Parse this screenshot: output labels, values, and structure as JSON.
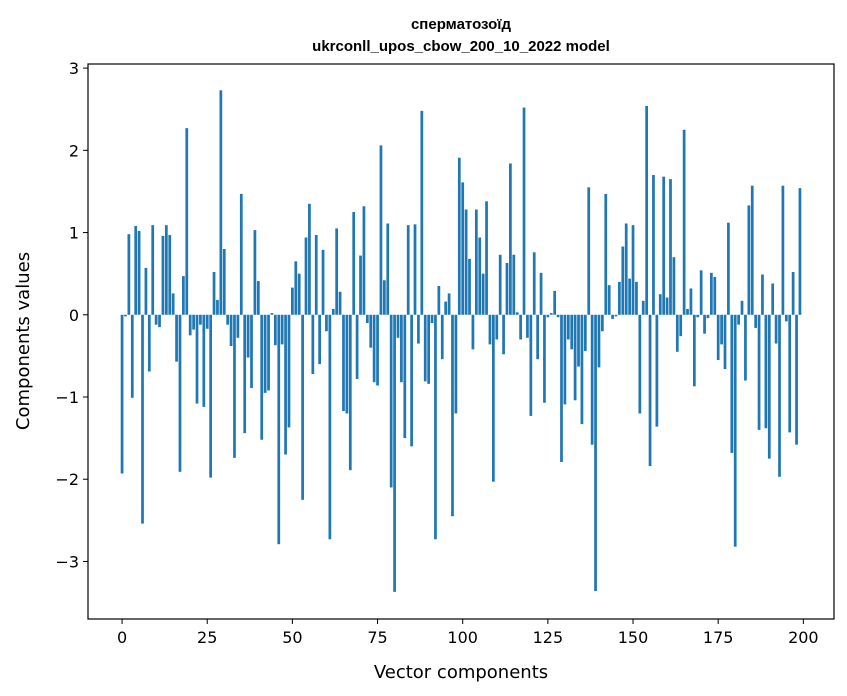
{
  "chart_data": {
    "type": "bar",
    "title": "сперматозоїд",
    "subtitle": "ukrconll_upos_cbow_200_10_2022 model",
    "xlabel": "Vector components",
    "ylabel": "Components values",
    "xlim": [
      -10,
      209
    ],
    "ylim": [
      -3.7,
      3.05
    ],
    "xticks": [
      0,
      25,
      50,
      75,
      100,
      125,
      150,
      175,
      200
    ],
    "xtick_labels": [
      "0",
      "25",
      "50",
      "75",
      "100",
      "125",
      "150",
      "175",
      "200"
    ],
    "yticks": [
      3,
      2,
      1,
      0,
      -1,
      -2,
      -3
    ],
    "ytick_labels": [
      "3",
      "2",
      "1",
      "0",
      "−1",
      "−2",
      "−3"
    ],
    "bar_color": "#1f77b4",
    "grid": false,
    "x": [
      0,
      1,
      2,
      3,
      4,
      5,
      6,
      7,
      8,
      9,
      10,
      11,
      12,
      13,
      14,
      15,
      16,
      17,
      18,
      19,
      20,
      21,
      22,
      23,
      24,
      25,
      26,
      27,
      28,
      29,
      30,
      31,
      32,
      33,
      34,
      35,
      36,
      37,
      38,
      39,
      40,
      41,
      42,
      43,
      44,
      45,
      46,
      47,
      48,
      49,
      50,
      51,
      52,
      53,
      54,
      55,
      56,
      57,
      58,
      59,
      60,
      61,
      62,
      63,
      64,
      65,
      66,
      67,
      68,
      69,
      70,
      71,
      72,
      73,
      74,
      75,
      76,
      77,
      78,
      79,
      80,
      81,
      82,
      83,
      84,
      85,
      86,
      87,
      88,
      89,
      90,
      91,
      92,
      93,
      94,
      95,
      96,
      97,
      98,
      99,
      100,
      101,
      102,
      103,
      104,
      105,
      106,
      107,
      108,
      109,
      110,
      111,
      112,
      113,
      114,
      115,
      116,
      117,
      118,
      119,
      120,
      121,
      122,
      123,
      124,
      125,
      126,
      127,
      128,
      129,
      130,
      131,
      132,
      133,
      134,
      135,
      136,
      137,
      138,
      139,
      140,
      141,
      142,
      143,
      144,
      145,
      146,
      147,
      148,
      149,
      150,
      151,
      152,
      153,
      154,
      155,
      156,
      157,
      158,
      159,
      160,
      161,
      162,
      163,
      164,
      165,
      166,
      167,
      168,
      169,
      170,
      171,
      172,
      173,
      174,
      175,
      176,
      177,
      178,
      179,
      180,
      181,
      182,
      183,
      184,
      185,
      186,
      187,
      188,
      189,
      190,
      191,
      192,
      193,
      194,
      195,
      196,
      197,
      198,
      199
    ],
    "values": [
      -1.93,
      -0.02,
      0.98,
      -1.01,
      1.08,
      1.02,
      -2.54,
      0.57,
      -0.69,
      1.09,
      -0.12,
      -0.15,
      0.96,
      1.09,
      0.97,
      0.26,
      -0.57,
      -1.91,
      0.47,
      2.27,
      -0.25,
      -0.18,
      -1.08,
      -0.12,
      -1.12,
      -0.17,
      -1.98,
      0.52,
      0.18,
      2.73,
      0.8,
      -0.12,
      -0.38,
      -1.74,
      -0.28,
      1.47,
      -1.44,
      -0.52,
      -0.89,
      1.03,
      0.41,
      -1.52,
      -0.95,
      -0.92,
      0.02,
      -0.37,
      -2.79,
      -0.36,
      -1.7,
      -1.37,
      0.33,
      0.65,
      0.5,
      -2.25,
      0.94,
      1.35,
      -0.72,
      0.97,
      -0.6,
      0.79,
      -0.2,
      -2.73,
      0.07,
      1.05,
      0.28,
      -1.17,
      -1.2,
      -1.89,
      1.25,
      -0.78,
      0.72,
      1.32,
      -0.1,
      -0.4,
      -0.82,
      -0.86,
      2.06,
      0.42,
      1.11,
      -2.1,
      -3.37,
      -0.28,
      -0.82,
      -1.5,
      1.09,
      -1.6,
      1.1,
      -0.35,
      2.48,
      -0.81,
      -0.84,
      -0.1,
      -2.73,
      0.35,
      -0.54,
      0.16,
      0.26,
      -2.45,
      -1.2,
      1.91,
      1.61,
      1.28,
      0.68,
      -0.42,
      1.28,
      0.94,
      0.5,
      1.38,
      -0.36,
      -2.03,
      -0.3,
      0.73,
      -0.48,
      0.63,
      1.84,
      0.73,
      0.03,
      -0.3,
      2.52,
      -0.28,
      -1.23,
      0.76,
      -0.54,
      0.51,
      -1.07,
      -0.03,
      0.02,
      0.29,
      -0.03,
      -1.79,
      -1.09,
      -0.3,
      -0.42,
      -1.04,
      -0.63,
      -1.33,
      -0.44,
      1.55,
      -1.58,
      -3.36,
      -0.64,
      -0.2,
      1.47,
      0.36,
      -0.05,
      -0.02,
      0.4,
      0.83,
      1.11,
      0.44,
      1.09,
      0.4,
      -1.2,
      0.17,
      2.54,
      -1.84,
      1.7,
      -1.36,
      0.25,
      1.68,
      0.21,
      1.65,
      0.7,
      -0.45,
      -0.26,
      2.25,
      0.07,
      0.32,
      -0.87,
      -0.03,
      0.54,
      -0.23,
      -0.04,
      0.51,
      0.46,
      -0.55,
      -0.36,
      -0.66,
      1.12,
      -1.68,
      -2.82,
      -0.12,
      0.17,
      -0.8,
      1.33,
      1.57,
      -0.16,
      -1.4,
      0.49,
      -1.38,
      -1.75,
      0.38,
      -0.35,
      -1.97,
      1.57,
      -0.08,
      -1.43,
      0.52,
      -1.58,
      1.54
    ]
  }
}
